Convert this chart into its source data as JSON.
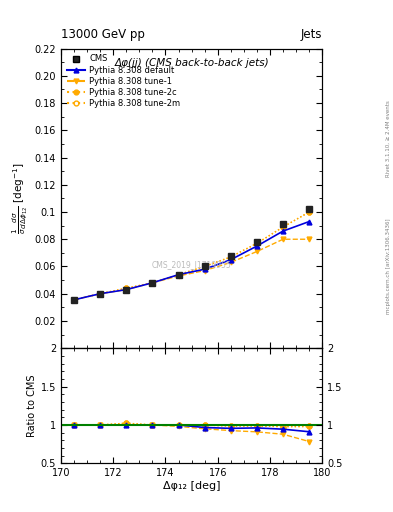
{
  "title_top": "13000 GeV pp",
  "title_top_right": "Jets",
  "plot_title": "Δφ(jj) (CMS back-to-back jets)",
  "watermark": "CMS_2019_I1719955",
  "right_label": "mcplots.cern.ch [arXiv:1306.3436]",
  "right_label2": "Rivet 3.1.10, ≥ 2.4M events",
  "xlabel": "Δφ₁₂ [deg]",
  "ylabel_ratio": "Ratio to CMS",
  "xlim": [
    170,
    180
  ],
  "ylim_main": [
    0.0,
    0.22
  ],
  "ylim_ratio": [
    0.5,
    2.0
  ],
  "yticks_main": [
    0.02,
    0.04,
    0.06,
    0.08,
    0.1,
    0.12,
    0.14,
    0.16,
    0.18,
    0.2,
    0.22
  ],
  "yticks_ratio": [
    0.5,
    1.0,
    1.5,
    2.0
  ],
  "x_data": [
    170.5,
    171.5,
    172.5,
    173.5,
    174.5,
    175.5,
    176.5,
    177.5,
    178.5,
    179.5
  ],
  "cms_y": [
    0.0355,
    0.04,
    0.043,
    0.048,
    0.054,
    0.06,
    0.068,
    0.078,
    0.091,
    0.102
  ],
  "pythia_default_y": [
    0.0355,
    0.04,
    0.043,
    0.048,
    0.054,
    0.058,
    0.065,
    0.075,
    0.086,
    0.093
  ],
  "pythia_tune1_y": [
    0.0355,
    0.04,
    0.043,
    0.048,
    0.053,
    0.057,
    0.063,
    0.071,
    0.08,
    0.08
  ],
  "pythia_tune2c_y": [
    0.0355,
    0.04,
    0.044,
    0.048,
    0.054,
    0.06,
    0.067,
    0.077,
    0.089,
    0.1
  ],
  "pythia_tune2m_y": [
    0.0355,
    0.04,
    0.044,
    0.048,
    0.054,
    0.06,
    0.067,
    0.077,
    0.089,
    0.1
  ],
  "cms_color": "#222222",
  "pythia_default_color": "#0000dd",
  "pythia_tune_color": "#ffaa00",
  "bg_color": "#ffffff"
}
